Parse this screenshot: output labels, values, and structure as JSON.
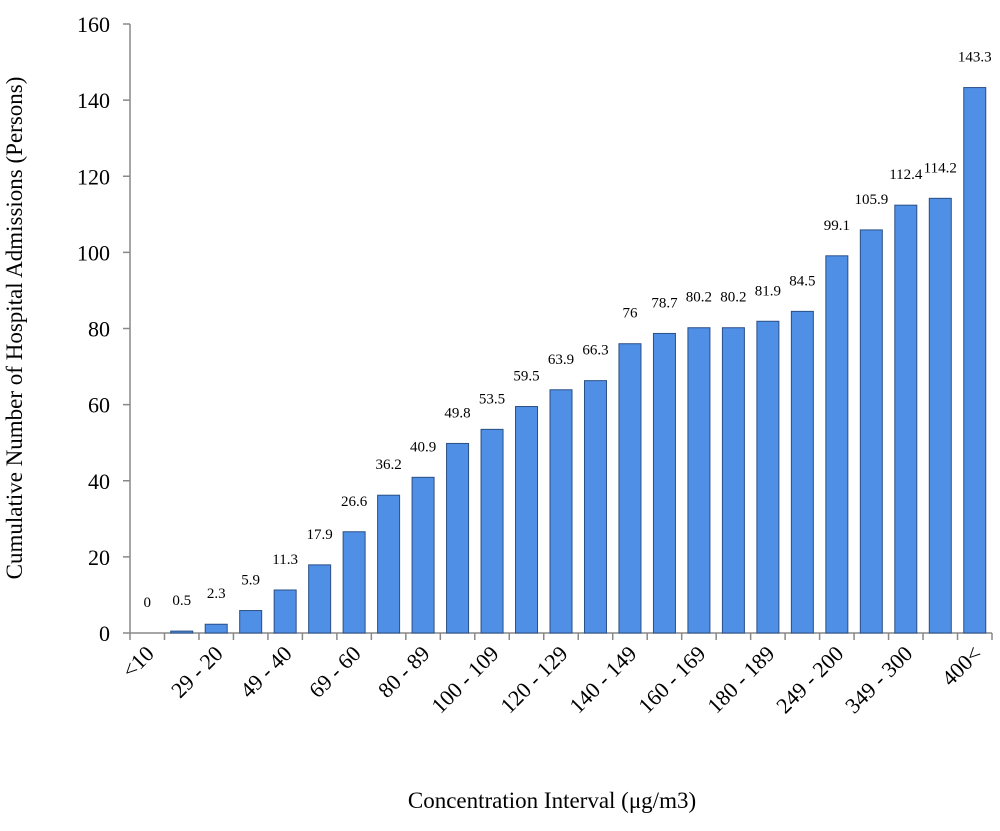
{
  "chart_data": {
    "type": "bar",
    "y_label": "Cumulative Number of Hospital Admissions (Persons)",
    "x_label": "Concentration Interval (μg/m3)",
    "categories": [
      "<10",
      null,
      "29 - 20",
      null,
      "49 - 40",
      null,
      "69 - 60",
      null,
      "80 - 89",
      null,
      "100 - 109",
      null,
      "120 - 129",
      null,
      "140 - 149",
      null,
      "160 - 169",
      null,
      "180 - 189",
      null,
      "249 - 200",
      null,
      "349 - 300",
      null,
      "400<"
    ],
    "values": [
      0,
      0.5,
      2.3,
      5.9,
      11.3,
      17.9,
      26.6,
      36.2,
      40.9,
      49.8,
      53.5,
      59.5,
      63.9,
      66.3,
      76,
      78.7,
      80.2,
      80.2,
      81.9,
      84.5,
      99.1,
      105.9,
      112.4,
      114.2,
      143.3
    ],
    "color": "#4f8fe6",
    "ylim": [
      0,
      160
    ],
    "yticks": [
      0,
      20,
      40,
      60,
      80,
      100,
      120,
      140,
      160
    ],
    "grid": false
  }
}
